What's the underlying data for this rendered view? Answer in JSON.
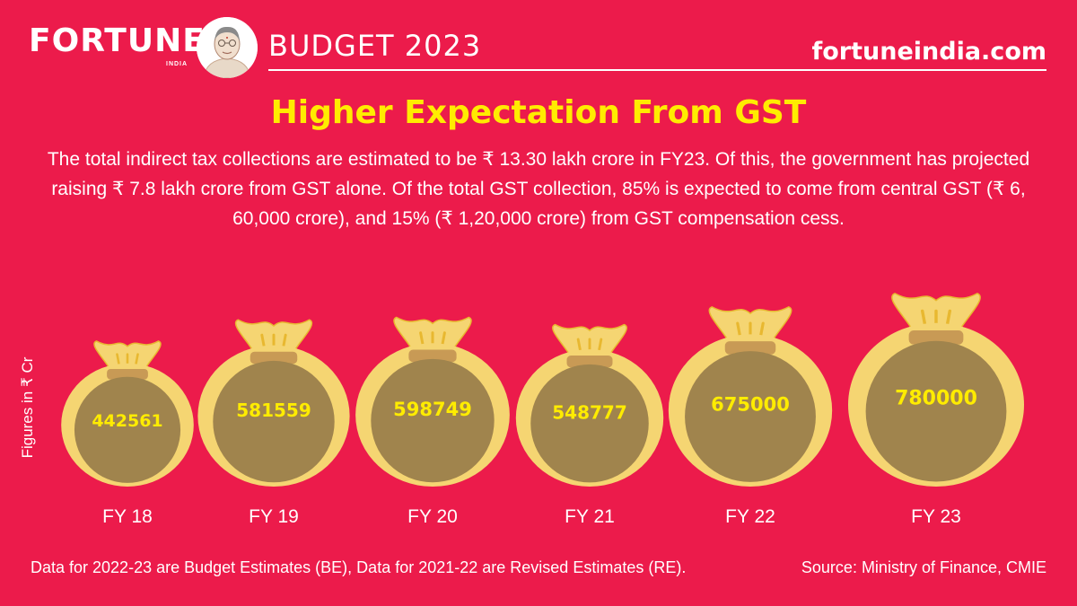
{
  "header": {
    "logo": "FORTUNE",
    "logo_sub": "INDIA",
    "section": "BUDGET 2023",
    "site": "fortuneindia.com"
  },
  "title": "Higher Expectation From GST",
  "description": "The total indirect tax collections are estimated to be ₹ 13.30 lakh crore in FY23. Of this, the government has projected raising ₹ 7.8 lakh crore from GST alone. Of the total GST collection, 85% is expected to come from central GST (₹ 6, 60,000 crore), and 15% (₹ 1,20,000 crore) from GST compensation cess.",
  "footer": {
    "note": "Data for 2022-23 are Budget Estimates (BE), Data for 2021-22 are Revised Estimates (RE).",
    "source": "Source: Ministry of Finance, CMIE"
  },
  "colors": {
    "background": "#ec1b4b",
    "bag": "#f5d572",
    "bag_stroke": "#e8b830",
    "bag_inner": "#a0844d",
    "tie": "#c89a55",
    "value_text": "#ffec00"
  },
  "chart_data": {
    "type": "bar",
    "ylabel": "Figures in ₹ Cr",
    "categories": [
      "FY 18",
      "FY 19",
      "FY 20",
      "FY 21",
      "FY 22",
      "FY 23"
    ],
    "values": [
      442561,
      581559,
      598749,
      548777,
      675000,
      780000
    ]
  }
}
